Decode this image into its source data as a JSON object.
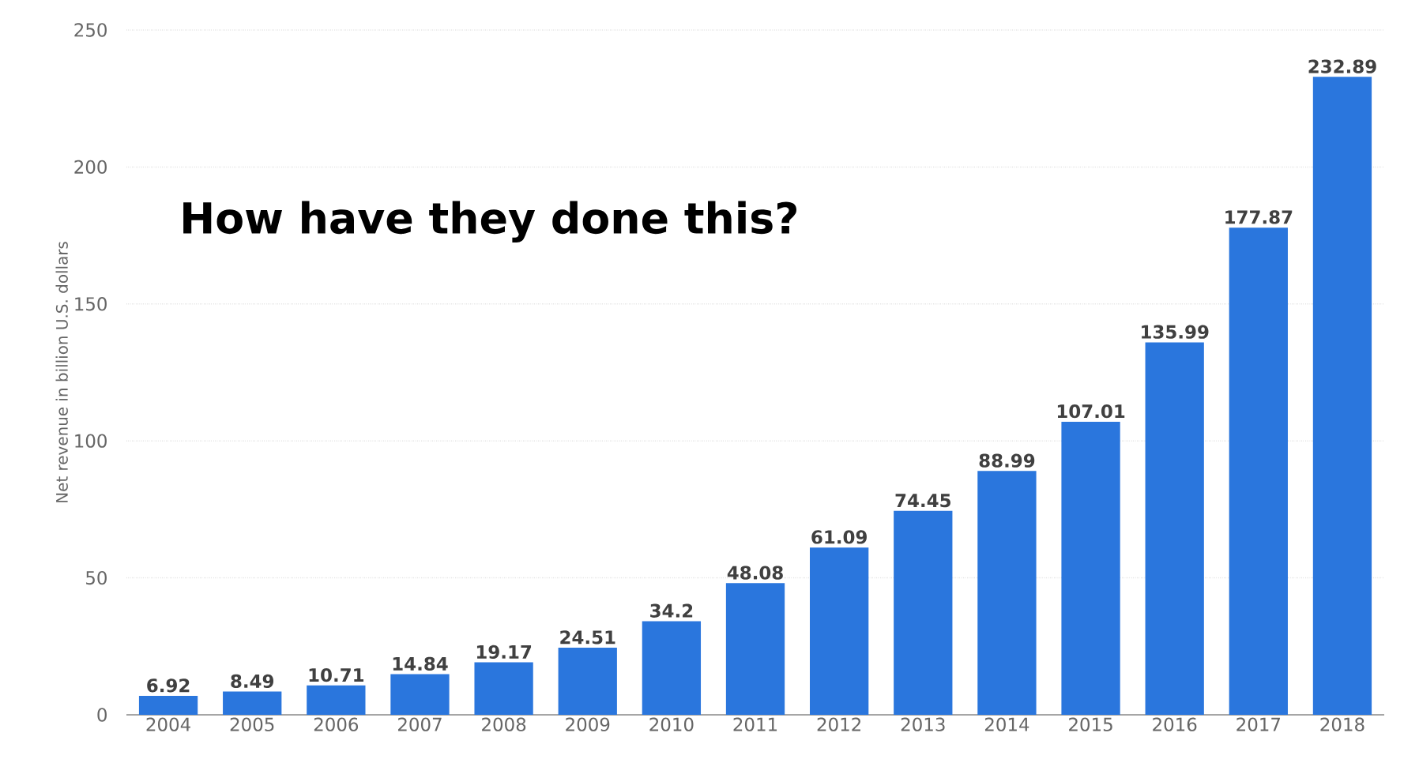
{
  "chart_data": {
    "type": "bar",
    "ylabel": "Net revenue in billion U.S. dollars",
    "categories": [
      "2004",
      "2005",
      "2006",
      "2007",
      "2008",
      "2009",
      "2010",
      "2011",
      "2012",
      "2013",
      "2014",
      "2015",
      "2016",
      "2017",
      "2018"
    ],
    "values": [
      6.92,
      8.49,
      10.71,
      14.84,
      19.17,
      24.51,
      34.2,
      48.08,
      61.09,
      74.45,
      88.99,
      107.01,
      135.99,
      177.87,
      232.89
    ],
    "color": "#2a76dd",
    "ylim": [
      0,
      250
    ],
    "yticks": [
      0,
      50,
      100,
      150,
      200,
      250
    ],
    "grid": "y",
    "data_labels": true,
    "annotations": [
      "How have they done this?"
    ]
  }
}
